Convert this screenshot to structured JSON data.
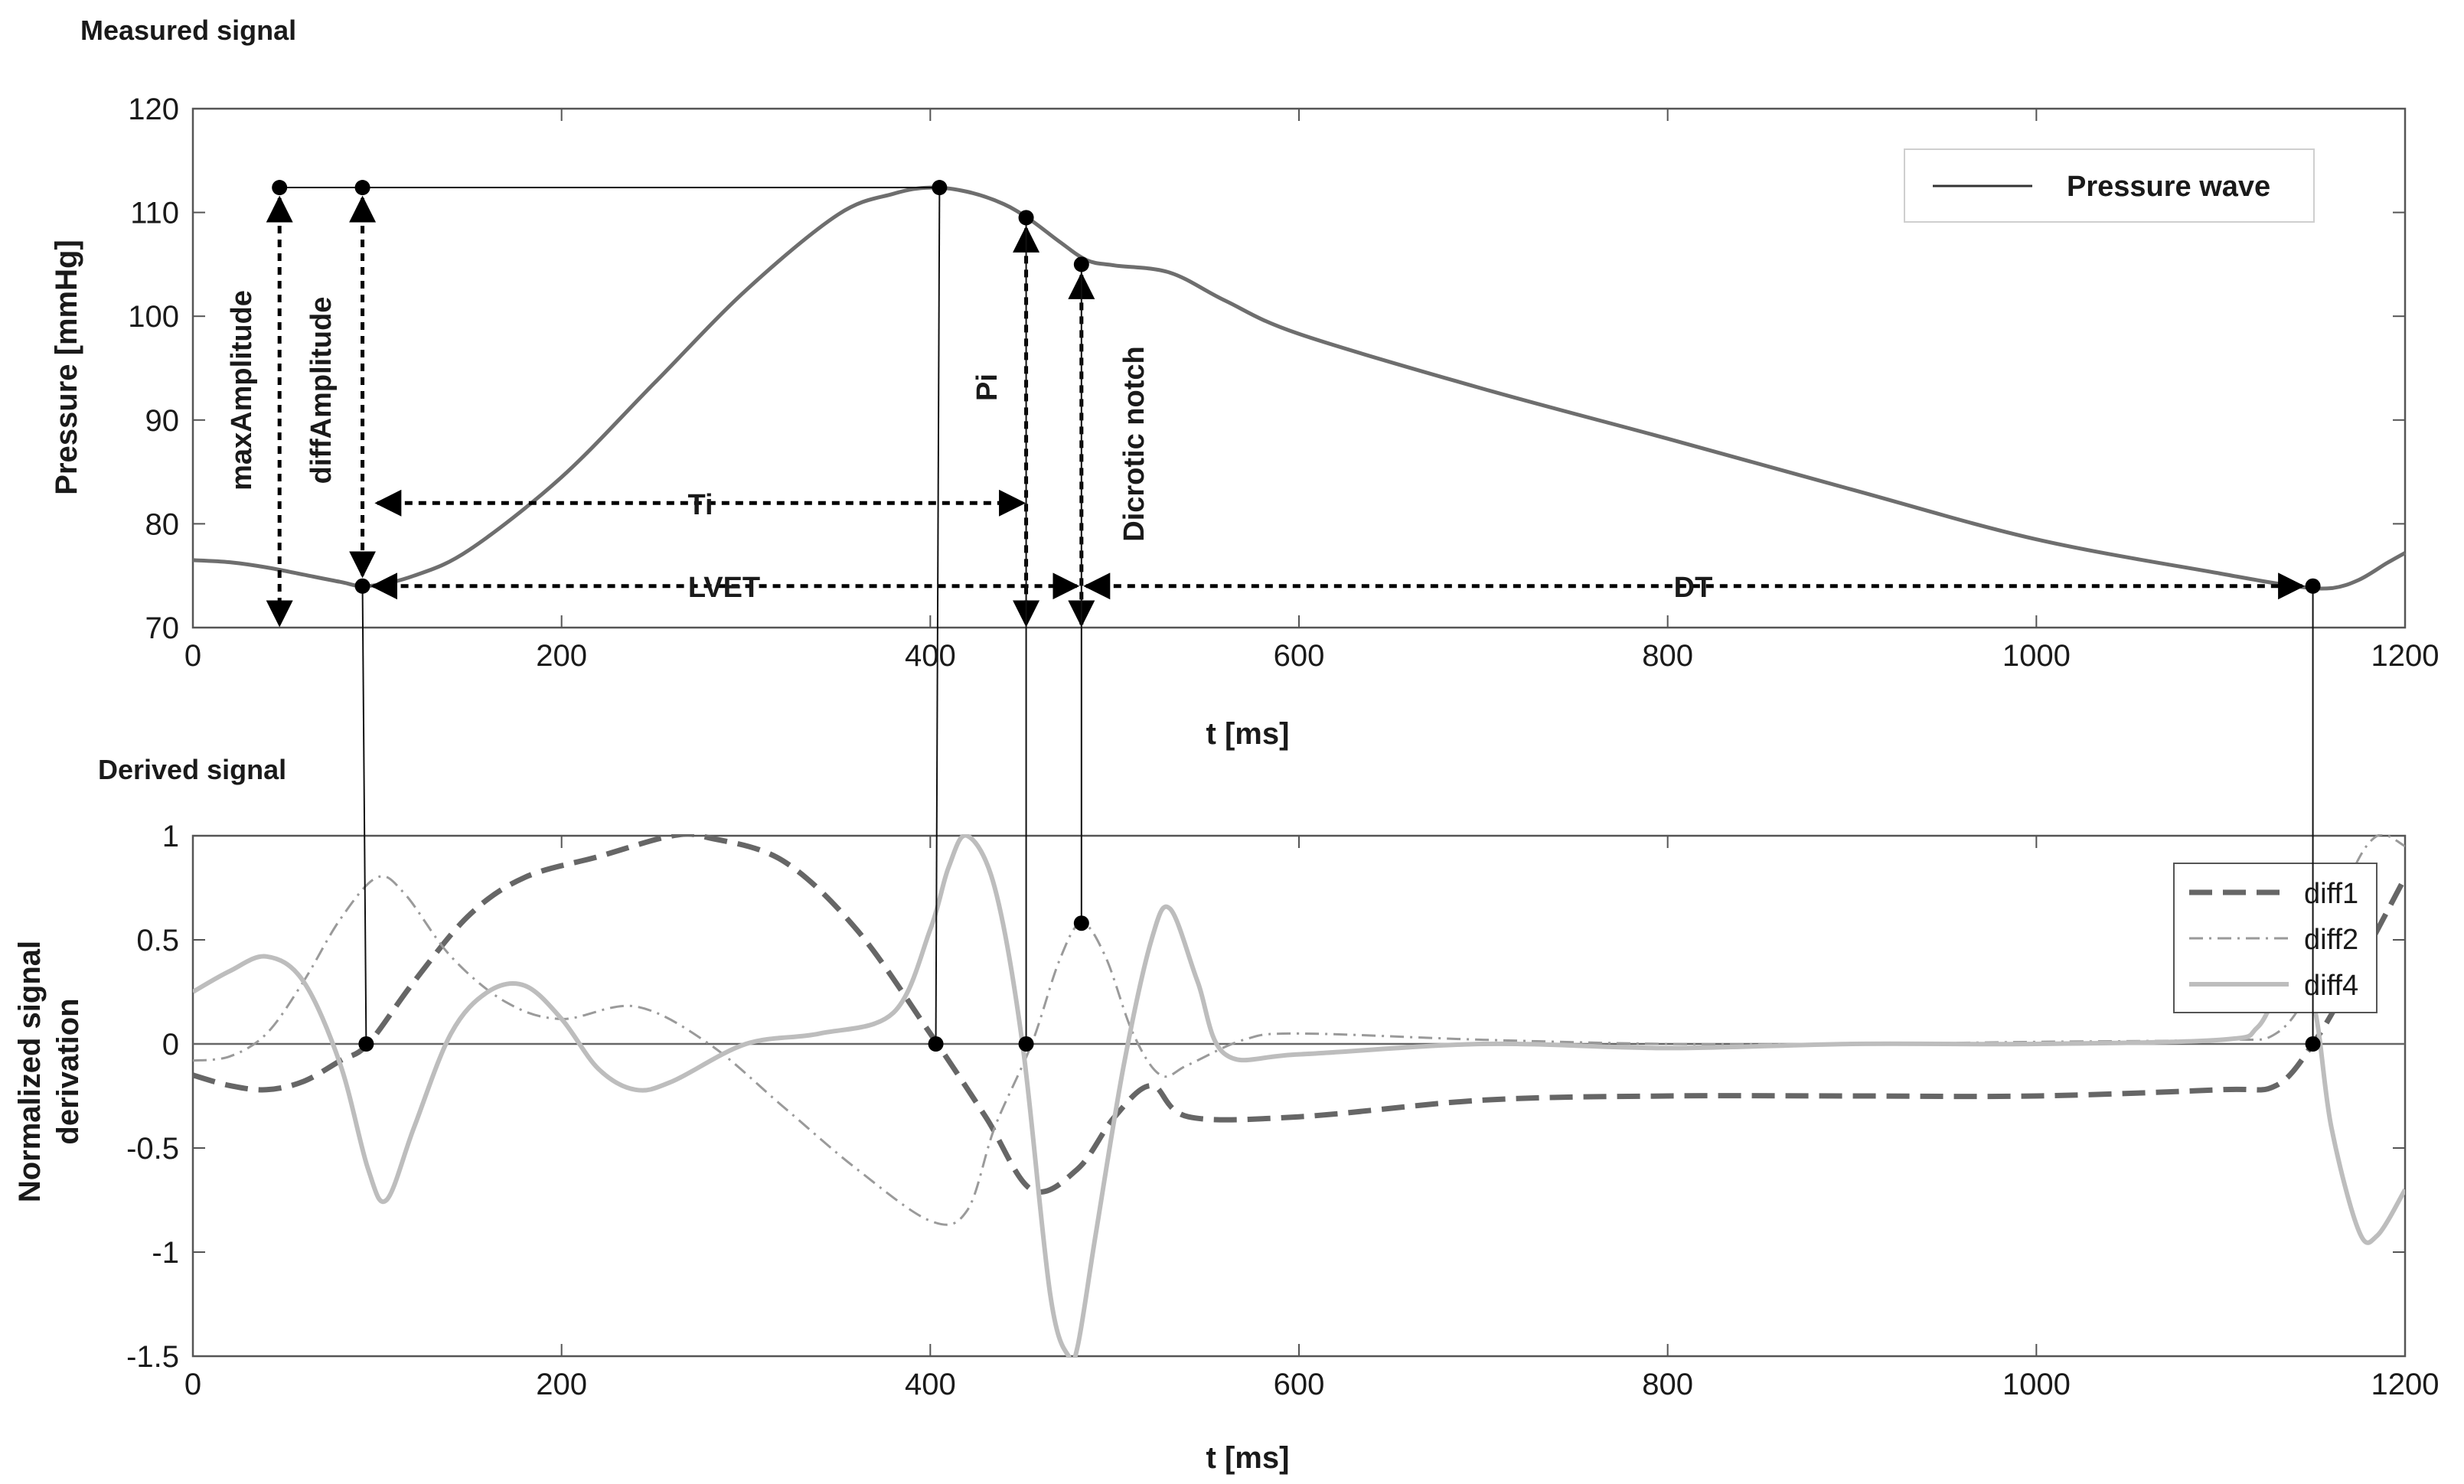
{
  "chart_data": [
    {
      "type": "line",
      "panel_title": "Measured signal",
      "xlabel": "t [ms]",
      "ylabel": "Pressure [mmHg]",
      "xlim": [
        0,
        1200
      ],
      "ylim": [
        70,
        120
      ],
      "xticks": [
        "0",
        "200",
        "400",
        "600",
        "800",
        "1000",
        "1200"
      ],
      "yticks": [
        "70",
        "80",
        "90",
        "100",
        "110",
        "120"
      ],
      "legend": "top-right",
      "series": [
        {
          "name": "Pressure wave",
          "color": "#6e6e6e",
          "x": [
            0,
            20,
            40,
            60,
            80,
            95,
            120,
            150,
            200,
            250,
            300,
            350,
            380,
            400,
            420,
            440,
            455,
            470,
            485,
            500,
            530,
            560,
            600,
            700,
            800,
            900,
            1000,
            1100,
            1140,
            1160,
            1175,
            1190,
            1200
          ],
          "y": [
            76.5,
            76.3,
            75.8,
            75.1,
            74.4,
            74.0,
            75.0,
            77.5,
            84.5,
            93.5,
            102.5,
            109.8,
            111.8,
            112.4,
            112.0,
            110.8,
            109.2,
            107.2,
            105.4,
            104.9,
            104.2,
            101.5,
            98.3,
            93.0,
            88.2,
            83.3,
            78.5,
            75.2,
            74.0,
            73.8,
            74.6,
            76.2,
            77.2
          ]
        }
      ],
      "points": [
        {
          "x": 47,
          "y": 112.4
        },
        {
          "x": 92,
          "y": 112.4
        },
        {
          "x": 405,
          "y": 112.4
        },
        {
          "x": 452,
          "y": 109.5
        },
        {
          "x": 482,
          "y": 105.0
        },
        {
          "x": 92,
          "y": 74.0
        },
        {
          "x": 1150,
          "y": 74.0
        }
      ],
      "annotations": {
        "maxAmplitude": "maxAmplitude",
        "diffAmplitude": "diffAmplitude",
        "Ti": "Ti",
        "LVET": "LVET",
        "Pi": "Pi",
        "Dicrotic": "Dicrotic notch",
        "DT": "DT"
      }
    },
    {
      "type": "line",
      "panel_title": "Derived signal",
      "xlabel": "t [ms]",
      "ylabel_line1": "Normalized signal",
      "ylabel_line2": "derivation",
      "xlim": [
        0,
        1200
      ],
      "ylim": [
        -1.5,
        1
      ],
      "xticks": [
        "0",
        "200",
        "400",
        "600",
        "800",
        "1000",
        "1200"
      ],
      "yticks": [
        "-1.5",
        "-1",
        "-0.5",
        "0",
        "0.5",
        "1"
      ],
      "legend": "top-right",
      "series": [
        {
          "name": "diff1",
          "color": "#666666",
          "style": "dashed",
          "x": [
            0,
            20,
            40,
            60,
            80,
            95,
            120,
            150,
            180,
            220,
            260,
            280,
            320,
            360,
            400,
            430,
            455,
            480,
            500,
            520,
            540,
            600,
            700,
            800,
            900,
            1000,
            1100,
            1130,
            1150,
            1170,
            1200
          ],
          "y": [
            -0.15,
            -0.2,
            -0.22,
            -0.18,
            -0.08,
            0.0,
            0.3,
            0.62,
            0.8,
            0.9,
            1.0,
            0.99,
            0.88,
            0.55,
            0.05,
            -0.35,
            -0.7,
            -0.6,
            -0.35,
            -0.2,
            -0.35,
            -0.35,
            -0.27,
            -0.25,
            -0.25,
            -0.25,
            -0.22,
            -0.2,
            0.0,
            0.3,
            0.8
          ]
        },
        {
          "name": "diff2",
          "color": "#9a9a9a",
          "style": "dashdot",
          "x": [
            0,
            20,
            40,
            60,
            80,
            100,
            115,
            140,
            170,
            200,
            240,
            280,
            320,
            360,
            400,
            420,
            435,
            455,
            470,
            482,
            495,
            510,
            525,
            540,
            570,
            600,
            700,
            800,
            900,
            1000,
            1100,
            1130,
            1150,
            1170,
            1185,
            1200
          ],
          "y": [
            -0.08,
            -0.06,
            0.05,
            0.3,
            0.6,
            0.8,
            0.72,
            0.42,
            0.2,
            0.12,
            0.18,
            0.0,
            -0.3,
            -0.6,
            -0.85,
            -0.8,
            -0.4,
            0.0,
            0.4,
            0.58,
            0.42,
            0.05,
            -0.15,
            -0.1,
            0.02,
            0.05,
            0.02,
            0.0,
            0.0,
            0.01,
            0.02,
            0.05,
            0.3,
            0.8,
            1.0,
            0.95
          ]
        },
        {
          "name": "diff4",
          "color": "#bdbdbd",
          "style": "solid",
          "x": [
            0,
            20,
            40,
            60,
            80,
            95,
            105,
            120,
            140,
            160,
            180,
            200,
            220,
            240,
            260,
            300,
            340,
            380,
            400,
            410,
            420,
            435,
            450,
            465,
            475,
            480,
            490,
            505,
            520,
            530,
            545,
            560,
            600,
            700,
            800,
            900,
            1000,
            1100,
            1120,
            1135,
            1150,
            1160,
            1175,
            1185,
            1200
          ],
          "y": [
            0.25,
            0.35,
            0.42,
            0.3,
            -0.1,
            -0.6,
            -0.75,
            -0.4,
            0.05,
            0.25,
            0.28,
            0.12,
            -0.12,
            -0.22,
            -0.18,
            0.0,
            0.05,
            0.15,
            0.55,
            0.85,
            1.0,
            0.75,
            0.0,
            -1.2,
            -1.5,
            -1.45,
            -0.9,
            -0.1,
            0.5,
            0.65,
            0.3,
            -0.05,
            -0.05,
            0.0,
            -0.02,
            0.0,
            0.0,
            0.02,
            0.08,
            0.3,
            0.2,
            -0.4,
            -0.9,
            -0.92,
            -0.7
          ]
        }
      ],
      "points": [
        {
          "x": 94,
          "y": 0
        },
        {
          "x": 403,
          "y": 0
        },
        {
          "x": 452,
          "y": 0
        },
        {
          "x": 482,
          "y": 0.58
        },
        {
          "x": 1150,
          "y": 0
        }
      ]
    }
  ],
  "connectors_x": [
    92,
    405,
    452,
    482,
    1150
  ]
}
